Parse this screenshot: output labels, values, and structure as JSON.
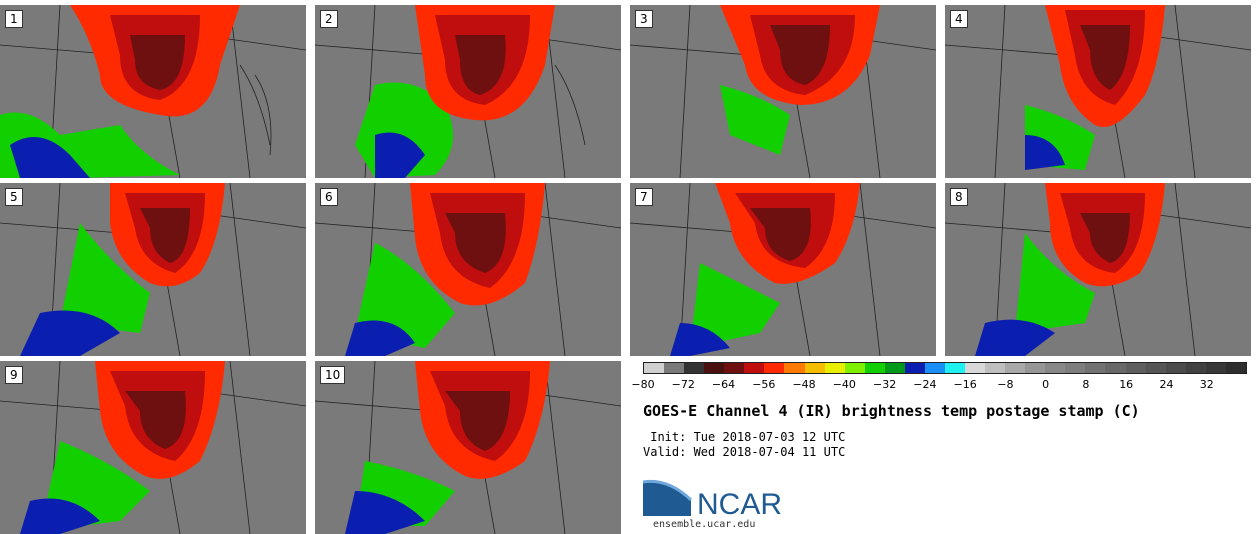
{
  "panels": [
    {
      "label": "1"
    },
    {
      "label": "2"
    },
    {
      "label": "3"
    },
    {
      "label": "4"
    },
    {
      "label": "5"
    },
    {
      "label": "6"
    },
    {
      "label": "7"
    },
    {
      "label": "8"
    },
    {
      "label": "9"
    },
    {
      "label": "10"
    }
  ],
  "colorbar": {
    "colors": [
      "#d0d0d0",
      "#7a7a7a",
      "#333333",
      "#4a0f0f",
      "#6e1010",
      "#c00d0d",
      "#ff2a00",
      "#ff7a00",
      "#f5bd00",
      "#e8ef00",
      "#7ef000",
      "#12d000",
      "#009a1a",
      "#0a1eb0",
      "#1a8ff5",
      "#1ff0f0",
      "#d8d8d8",
      "#bfbfbf",
      "#a8a8a8",
      "#969696",
      "#888888",
      "#7d7d7d",
      "#727272",
      "#686868",
      "#5e5e5e",
      "#555555",
      "#4b4b4b",
      "#414141",
      "#383838",
      "#2e2e2e"
    ],
    "ticks": [
      "−80",
      "−72",
      "−64",
      "−56",
      "−48",
      "−40",
      "−32",
      "−24",
      "−16",
      "−8",
      "0",
      "8",
      "16",
      "24",
      "32"
    ]
  },
  "title": "GOES-E Channel 4 (IR) brightness temp postage stamp (C)",
  "init_text": " Init: Tue 2018-07-03 12 UTC",
  "valid_text": "Valid: Wed 2018-07-04 11 UTC",
  "logo": {
    "text": "NCAR",
    "url": "ensemble.ucar.edu",
    "color": "#1f5a92"
  }
}
